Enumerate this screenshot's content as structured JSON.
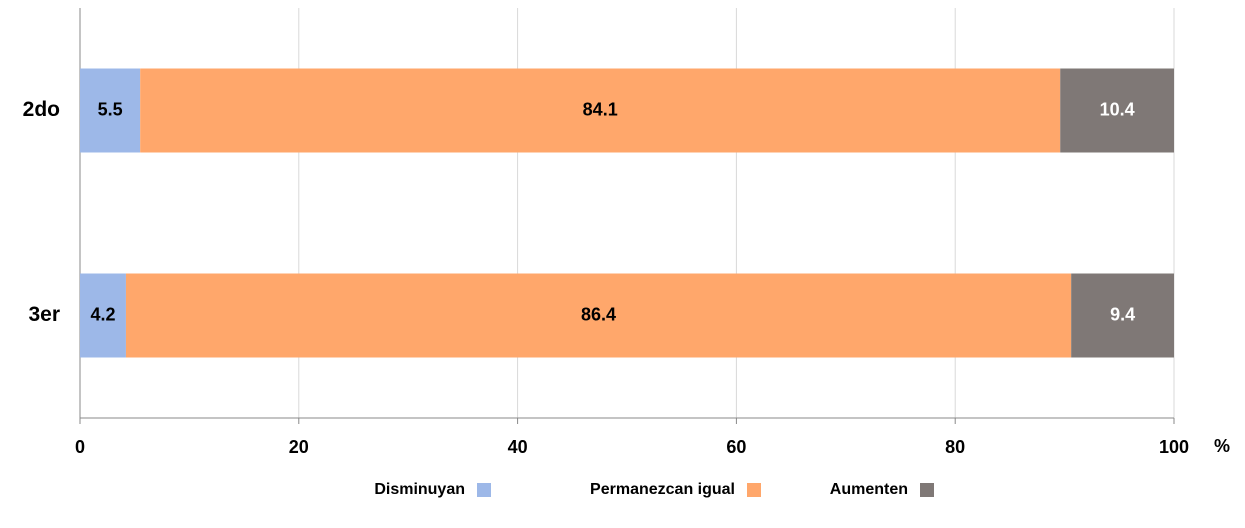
{
  "chart_data": {
    "type": "stacked_bar_horizontal",
    "categories": [
      "2do",
      "3er"
    ],
    "series": [
      {
        "name": "Disminuyan",
        "color": "#9db8e8",
        "label_color": "#000000",
        "values": [
          5.5,
          4.2
        ]
      },
      {
        "name": "Permanezcan igual",
        "color": "#ffa76b",
        "label_color": "#000000",
        "values": [
          84.1,
          86.4
        ]
      },
      {
        "name": "Aumenten",
        "color": "#7f7876",
        "label_color": "#ffffff",
        "values": [
          10.4,
          9.4
        ]
      }
    ],
    "x_label": "%",
    "xlim": [
      0,
      100
    ],
    "xticks": [
      0,
      20,
      40,
      60,
      80,
      100
    ],
    "grid": true,
    "legend": "bottom"
  }
}
